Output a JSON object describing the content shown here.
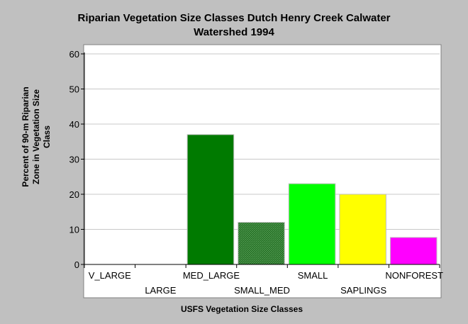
{
  "chart_data": {
    "type": "bar",
    "title_lines": [
      "Riparian Vegetation Size Classes Dutch Henry Creek Calwater",
      "Watershed 1994"
    ],
    "xlabel": "USFS Vegetation Size Classes",
    "ylabel_lines": [
      "Percent of 90-m Riparian",
      "Zone in Vegetation Size",
      "Class"
    ],
    "categories": [
      "V_LARGE",
      "LARGE",
      "MED_LARGE",
      "SMALL_MED",
      "SMALL",
      "SAPLINGS",
      "NONFOREST"
    ],
    "values": [
      0,
      0,
      37,
      12,
      23,
      20,
      7.7
    ],
    "colors": [
      "#006400",
      "#006400",
      "#007a00",
      "#2e7d2e",
      "#00ff00",
      "#ffff00",
      "#ff00ff"
    ],
    "patterns": [
      false,
      false,
      false,
      true,
      false,
      false,
      false
    ],
    "ylim": [
      0,
      60
    ],
    "yticks": [
      0,
      10,
      20,
      30,
      40,
      50,
      60
    ],
    "grid": true,
    "legend": "none"
  }
}
